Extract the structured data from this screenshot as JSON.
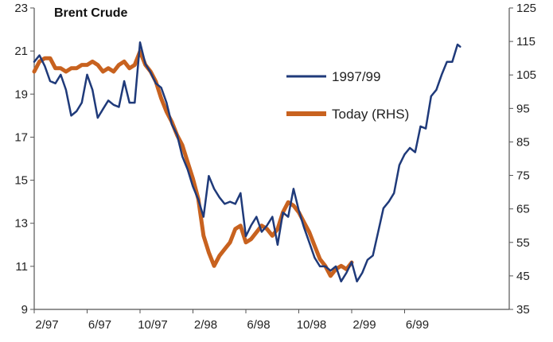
{
  "chart_data": {
    "type": "line",
    "title": "Brent Crude",
    "x_categories": [
      "2/97",
      "6/97",
      "10/97",
      "2/98",
      "6/98",
      "10/98",
      "2/99",
      "6/99"
    ],
    "y_left": {
      "min": 9,
      "max": 23,
      "ticks": [
        9,
        11,
        13,
        15,
        17,
        19,
        21,
        23
      ]
    },
    "y_right": {
      "min": 35,
      "max": 125,
      "ticks": [
        35,
        45,
        55,
        65,
        75,
        85,
        95,
        105,
        115,
        125
      ]
    },
    "grid": false,
    "legend_position": "upper-middle",
    "series": [
      {
        "name": "1997/99",
        "axis": "left",
        "color": "#1f3a7a",
        "x": [
          0,
          0.1,
          0.2,
          0.3,
          0.4,
          0.5,
          0.6,
          0.7,
          0.8,
          0.9,
          1.0,
          1.1,
          1.2,
          1.3,
          1.4,
          1.5,
          1.6,
          1.7,
          1.8,
          1.9,
          2.0,
          2.1,
          2.2,
          2.3,
          2.4,
          2.5,
          2.6,
          2.7,
          2.8,
          2.9,
          3.0,
          3.1,
          3.2,
          3.3,
          3.4,
          3.5,
          3.6,
          3.7,
          3.8,
          3.9,
          4.0,
          4.1,
          4.2,
          4.3,
          4.4,
          4.5,
          4.6,
          4.7,
          4.8,
          4.9,
          5.0,
          5.1,
          5.2,
          5.3,
          5.4,
          5.5,
          5.6,
          5.7,
          5.8,
          5.9,
          6.0,
          6.1,
          6.2,
          6.3,
          6.4,
          6.5,
          6.6,
          6.7,
          6.8,
          6.9,
          7.0,
          7.1,
          7.2,
          7.3,
          7.4,
          7.5,
          7.6,
          7.7,
          7.8,
          7.9,
          8.0,
          8.05
        ],
        "values": [
          20.5,
          20.8,
          20.3,
          19.6,
          19.5,
          19.9,
          19.2,
          18.0,
          18.2,
          18.6,
          19.9,
          19.2,
          17.9,
          18.3,
          18.7,
          18.5,
          18.4,
          19.6,
          18.6,
          18.6,
          21.4,
          20.4,
          20.0,
          19.5,
          19.3,
          18.6,
          17.6,
          17.1,
          16.1,
          15.5,
          14.7,
          14.1,
          13.3,
          15.2,
          14.6,
          14.2,
          13.9,
          14.0,
          13.9,
          14.4,
          12.4,
          12.9,
          13.3,
          12.6,
          12.9,
          13.3,
          12.0,
          13.5,
          13.3,
          14.6,
          13.6,
          12.8,
          12.1,
          11.4,
          11.0,
          11.0,
          10.8,
          11.0,
          10.3,
          10.7,
          11.2,
          10.3,
          10.7,
          11.3,
          11.5,
          12.6,
          13.7,
          14.0,
          14.4,
          15.7,
          16.2,
          16.5,
          16.3,
          17.5,
          17.4,
          18.9,
          19.2,
          19.9,
          20.5,
          20.5,
          21.3,
          21.2
        ]
      },
      {
        "name": "Today (RHS)",
        "axis": "right",
        "color": "#c8621f",
        "x": [
          0,
          0.1,
          0.2,
          0.3,
          0.4,
          0.5,
          0.6,
          0.7,
          0.8,
          0.9,
          1.0,
          1.1,
          1.2,
          1.3,
          1.4,
          1.5,
          1.6,
          1.7,
          1.8,
          1.9,
          2.0,
          2.1,
          2.2,
          2.3,
          2.4,
          2.5,
          2.6,
          2.7,
          2.8,
          2.9,
          3.0,
          3.1,
          3.2,
          3.3,
          3.4,
          3.5,
          3.6,
          3.7,
          3.8,
          3.9,
          4.0,
          4.1,
          4.2,
          4.3,
          4.4,
          4.5,
          4.6,
          4.7,
          4.8,
          4.9,
          5.0,
          5.1,
          5.2,
          5.3,
          5.4,
          5.5,
          5.6,
          5.7,
          5.8,
          5.9,
          6.0,
          6.1,
          6.2,
          6.3,
          6.4,
          6.5,
          6.6,
          6.7,
          6.8,
          6.9,
          7.0,
          7.1,
          7.2,
          7.3,
          7.4,
          7.5,
          7.6,
          7.7,
          7.8,
          7.9,
          8.0
        ],
        "values": [
          106,
          109,
          110,
          110,
          107,
          107,
          106,
          107,
          107,
          108,
          108,
          109,
          108,
          106,
          107,
          106,
          108,
          109,
          107,
          108,
          112,
          108,
          106,
          103,
          98,
          94,
          91,
          87,
          84,
          79,
          74,
          68,
          57,
          52,
          48,
          51,
          53,
          55,
          59,
          60,
          55,
          56,
          58,
          60,
          59,
          57,
          59,
          64,
          67,
          66,
          64,
          61,
          58,
          54,
          50,
          48,
          45,
          47,
          48,
          47,
          49,
          null,
          null,
          null,
          null,
          null,
          null,
          null,
          null,
          null,
          null,
          null,
          null,
          null,
          null,
          null,
          null,
          null,
          null,
          null,
          null
        ]
      }
    ]
  }
}
